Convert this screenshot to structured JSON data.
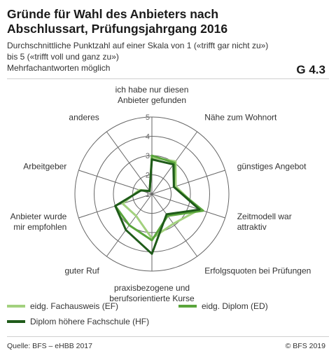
{
  "header": {
    "title": "Gründe für Wahl des Anbieters nach Abschlussart, Prüfungsjahrgang 2016",
    "subtitle_line1": "Durchschnittliche Punktzahl auf einer Skala von 1 («trifft gar nicht zu»)",
    "subtitle_line2": "bis 5 («trifft voll und ganz zu»)",
    "subtitle_line3": "Mehrfachantworten möglich",
    "code": "G 4.3"
  },
  "footer": {
    "source": "Quelle: BFS – eHBB 2017",
    "copyright": "© BFS 2019"
  },
  "chart_data": {
    "type": "radar",
    "scale": [
      1,
      5
    ],
    "ticks": [
      "1",
      "2",
      "3",
      "4",
      "5"
    ],
    "categories": [
      [
        "ich habe nur diesen",
        "Anbieter gefunden"
      ],
      [
        "Nähe zum Wohnort"
      ],
      [
        "günstiges Angebot"
      ],
      [
        "Zeitmodell war",
        "attraktiv"
      ],
      [
        "Erfolgsquoten bei Prüfungen"
      ],
      [
        "praxisbezogene und",
        "berufsorientierte Kurse"
      ],
      [
        "guter Ruf"
      ],
      [
        "Anbieter wurde",
        "mir empfohlen"
      ],
      [
        "Arbeitgeber"
      ],
      [
        "anderes"
      ]
    ],
    "series": [
      {
        "name": "eidg. Fachausweis (EF)",
        "color": "#a3d17e",
        "values": [
          2.9,
          3.1,
          2.3,
          3.6,
          2.9,
          3.3,
          2.4,
          2.6,
          1.7,
          1.2
        ]
      },
      {
        "name": "eidg. Diplom (ED)",
        "color": "#5aa53c",
        "values": [
          3.0,
          3.0,
          2.2,
          3.8,
          2.4,
          3.4,
          3.0,
          3.0,
          1.6,
          1.2
        ]
      },
      {
        "name": "Diplom höhere Fachschule (HF)",
        "color": "#1f5b1a",
        "values": [
          2.8,
          2.9,
          2.2,
          3.6,
          2.3,
          4.1,
          3.3,
          3.0,
          1.6,
          1.2
        ]
      }
    ]
  }
}
